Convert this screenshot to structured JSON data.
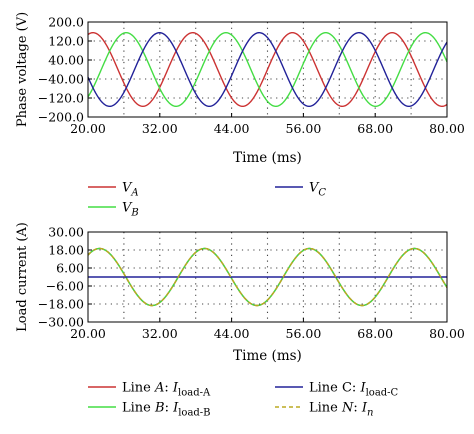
{
  "chart_data": [
    {
      "type": "line",
      "xlabel": "Time (ms)",
      "ylabel": "Phase voltage (V)",
      "xlim": [
        20,
        80
      ],
      "ylim": [
        -200,
        200
      ],
      "x_ticks": [
        20,
        32,
        44,
        56,
        68,
        80
      ],
      "x_tick_labels": [
        "20.00",
        "32.00",
        "44.00",
        "56.00",
        "68.00",
        "80.00"
      ],
      "y_ticks": [
        200,
        120,
        40,
        -40,
        -120,
        -200
      ],
      "y_tick_labels": [
        "200.0",
        "120.0",
        "40.00",
        "−40.00",
        "−120.0",
        "−200.0"
      ],
      "grid": "dotted",
      "legend_position": "below",
      "series": [
        {
          "name": "V_A",
          "label_main": "V",
          "label_sub": "A",
          "color": "#cc3333",
          "function": "sine",
          "amplitude": 155,
          "frequency_hz": 60,
          "phase_deg": 0
        },
        {
          "name": "V_B",
          "label_main": "V",
          "label_sub": "B",
          "color": "#44dd44",
          "function": "sine",
          "amplitude": 155,
          "frequency_hz": 60,
          "phase_deg": -120
        },
        {
          "name": "V_C",
          "label_main": "V",
          "label_sub": "C",
          "color": "#222299",
          "function": "sine",
          "amplitude": 155,
          "frequency_hz": 60,
          "phase_deg": 120
        }
      ]
    },
    {
      "type": "line",
      "xlabel": "Time (ms)",
      "ylabel": "Load current (A)",
      "xlim": [
        20,
        80
      ],
      "ylim": [
        -30,
        30
      ],
      "x_ticks": [
        20,
        32,
        44,
        56,
        68,
        80
      ],
      "x_tick_labels": [
        "20.00",
        "32.00",
        "44.00",
        "56.00",
        "68.00",
        "80.00"
      ],
      "y_ticks": [
        30,
        18,
        6,
        -6,
        -18,
        -30
      ],
      "y_tick_labels": [
        "30.00",
        "18.00",
        "6.00",
        "−6.00",
        "−18.00",
        "−30.00"
      ],
      "grid": "dotted",
      "legend_position": "below",
      "series": [
        {
          "name": "Line A: I_load-A",
          "label_prefix": "Line ",
          "label_letter": "A",
          "label_main": "I",
          "label_sub": "load-A",
          "color": "#cc3333",
          "style": "solid",
          "function": "sine",
          "amplitude": 19,
          "frequency_hz": 57,
          "phase_deg": 0
        },
        {
          "name": "Line B: I_load-B",
          "label_prefix": "Line ",
          "label_letter": "B",
          "label_main": "I",
          "label_sub": "load-B",
          "color": "#44dd44",
          "style": "solid",
          "function": "sine",
          "amplitude": 19,
          "frequency_hz": 57,
          "phase_deg": 0
        },
        {
          "name": "Line C: I_load-C",
          "label_prefix": "Line C: ",
          "label_letter": "",
          "label_main": "I",
          "label_sub": "load-C",
          "color": "#222299",
          "style": "solid",
          "function": "constant",
          "value": 0
        },
        {
          "name": "Line N: I_n",
          "label_prefix": "Line ",
          "label_letter": "N",
          "label_main": "I",
          "label_sub": "n",
          "color": "#bbaa22",
          "style": "dashed",
          "function": "sine",
          "amplitude": 19,
          "frequency_hz": 57,
          "phase_deg": 0
        }
      ]
    }
  ]
}
